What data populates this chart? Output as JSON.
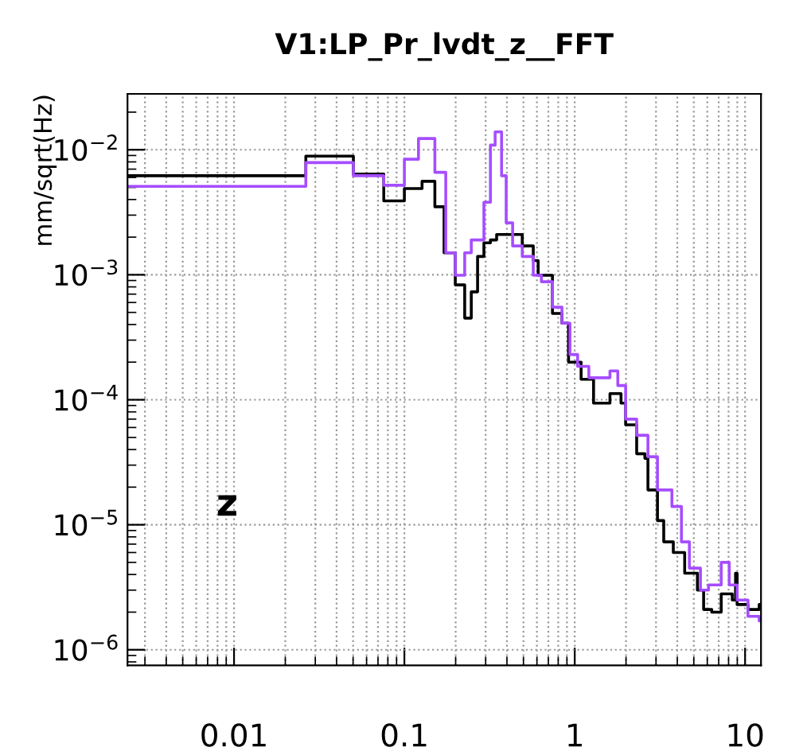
{
  "chart_data": {
    "type": "step",
    "title": "V1:LP_Pr_lvdt_z__FFT",
    "ylabel": "mm/sqrt(Hz)",
    "annotations": [
      "z"
    ],
    "series": [
      {
        "color": "#000000",
        "x": [
          0.00237,
          0.0264,
          0.0502,
          0.0757,
          0.1,
          0.127,
          0.151,
          0.171,
          0.199,
          0.226,
          0.247,
          0.269,
          0.293,
          0.32,
          0.348,
          0.492,
          0.571,
          0.61,
          0.74,
          0.841,
          0.92,
          1.09,
          1.29,
          1.61,
          1.87,
          1.99,
          2.31,
          2.58,
          2.69,
          3.06,
          3.33,
          3.79,
          4.42,
          5.25,
          5.71,
          6.37,
          7.24,
          8.41,
          8.79,
          8.98,
          10.4,
          12.1,
          12.4
        ],
        "values": [
          0.0062,
          0.0089,
          0.0064,
          0.0039,
          0.0049,
          0.0056,
          0.0035,
          0.0015,
          0.00083,
          0.00045,
          0.00073,
          0.0014,
          0.0018,
          0.0019,
          0.0021,
          0.0017,
          0.0013,
          0.00099,
          0.00049,
          0.00041,
          0.0002,
          0.000146,
          9.4e-05,
          0.000112,
          9.4e-05,
          6.3e-05,
          3.7e-05,
          3.4e-05,
          1.9e-05,
          1.08e-05,
          7.3e-06,
          6e-06,
          4.1e-06,
          3e-06,
          2.1e-06,
          2e-06,
          2.8e-06,
          2.5e-06,
          4.1e-06,
          2.3e-06,
          2.1e-06,
          2.3e-06,
          2.3e-06
        ]
      },
      {
        "color": "#a64dff",
        "x": [
          0.00237,
          0.0264,
          0.0502,
          0.0757,
          0.1,
          0.121,
          0.151,
          0.175,
          0.199,
          0.226,
          0.247,
          0.293,
          0.32,
          0.341,
          0.372,
          0.396,
          0.432,
          0.492,
          0.571,
          0.637,
          0.74,
          0.841,
          0.937,
          1.04,
          1.21,
          1.61,
          1.79,
          1.99,
          2.31,
          2.69,
          3.06,
          3.72,
          4.23,
          4.71,
          5.47,
          6.1,
          7.24,
          8.07,
          8.98,
          10.4,
          12.1,
          12.4
        ],
        "values": [
          0.0051,
          0.0079,
          0.0062,
          0.0052,
          0.0084,
          0.0123,
          0.0066,
          0.0015,
          0.00099,
          0.0015,
          0.0019,
          0.0038,
          0.0109,
          0.0139,
          0.0062,
          0.0026,
          0.0017,
          0.0014,
          0.00099,
          0.00088,
          0.00055,
          0.00041,
          0.00023,
          0.000185,
          0.00015,
          0.00017,
          0.00013,
          7e-05,
          5.2e-05,
          3.5e-05,
          1.9e-05,
          1.4e-05,
          7.3e-06,
          4.5e-06,
          3e-06,
          3.3e-06,
          5e-06,
          3.3e-06,
          2.5e-06,
          1.85e-06,
          1.7e-06,
          1.7e-06
        ]
      }
    ],
    "log": "xy",
    "xlim": [
      0.00237,
      12.4
    ],
    "ylim": [
      7.5e-07,
      0.028
    ],
    "xticks": [
      0.01,
      0.1,
      1,
      10
    ],
    "yticks": [
      {
        "value": 1e-06,
        "label": "10$^{−6}$"
      },
      {
        "value": 1e-05,
        "label": "10$^{−5}$"
      },
      {
        "value": 0.0001,
        "label": "10$^{−4}$"
      },
      {
        "value": 0.001,
        "label": "10$^{−3}$"
      },
      {
        "value": 0.01,
        "label": "10$^{−2}$"
      }
    ],
    "grid": true,
    "legend": false
  }
}
